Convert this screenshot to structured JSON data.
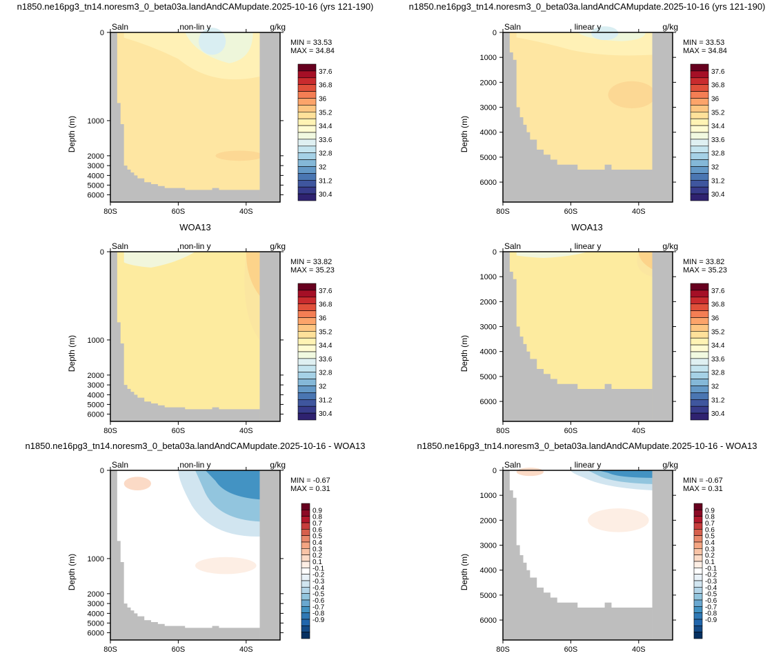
{
  "chart_data": [
    {
      "type": "heatmap",
      "panel": "model-nonlinear",
      "title": "n1850.ne16pg3_tn14.noresm3_0_beta03a.landAndCAMupdate.2025-10-16 (yrs 121-190)",
      "left_label": "Saln",
      "center_label": "non-lin y",
      "right_label": "g/kg",
      "ylabel": "Depth (m)",
      "x_ticks": [
        "80S",
        "60S",
        "40S"
      ],
      "y_ticks": [
        "0",
        "1000",
        "2000",
        "3000",
        "4000",
        "5000",
        "6000"
      ],
      "min_label": "MIN = ",
      "min_value": "33.53",
      "max_label": "MAX = ",
      "max_value": "34.84",
      "colorbar": "salinity",
      "y_scale": "nonlinear"
    },
    {
      "type": "heatmap",
      "panel": "model-linear",
      "title": "n1850.ne16pg3_tn14.noresm3_0_beta03a.landAndCAMupdate.2025-10-16 (yrs 121-190)",
      "left_label": "Saln",
      "center_label": "linear y",
      "right_label": "g/kg",
      "ylabel": "Depth (m)",
      "x_ticks": [
        "80S",
        "60S",
        "40S"
      ],
      "y_ticks": [
        "0",
        "1000",
        "2000",
        "3000",
        "4000",
        "5000",
        "6000"
      ],
      "min_label": "MIN = ",
      "min_value": "33.53",
      "max_label": "MAX = ",
      "max_value": "34.84",
      "colorbar": "salinity",
      "y_scale": "linear"
    },
    {
      "type": "heatmap",
      "panel": "obs-nonlinear",
      "title": "WOA13",
      "left_label": "Saln",
      "center_label": "non-lin y",
      "right_label": "g/kg",
      "ylabel": "Depth (m)",
      "x_ticks": [
        "80S",
        "60S",
        "40S"
      ],
      "y_ticks": [
        "0",
        "1000",
        "2000",
        "3000",
        "4000",
        "5000",
        "6000"
      ],
      "min_label": "MIN = ",
      "min_value": "33.82",
      "max_label": "MAX = ",
      "max_value": "35.23",
      "colorbar": "salinity",
      "y_scale": "nonlinear"
    },
    {
      "type": "heatmap",
      "panel": "obs-linear",
      "title": "WOA13",
      "left_label": "Saln",
      "center_label": "linear y",
      "right_label": "g/kg",
      "ylabel": "Depth (m)",
      "x_ticks": [
        "80S",
        "60S",
        "40S"
      ],
      "y_ticks": [
        "0",
        "1000",
        "2000",
        "3000",
        "4000",
        "5000",
        "6000"
      ],
      "min_label": "MIN = ",
      "min_value": "33.82",
      "max_label": "MAX = ",
      "max_value": "35.23",
      "colorbar": "salinity",
      "y_scale": "linear"
    },
    {
      "type": "heatmap",
      "panel": "diff-nonlinear",
      "title": "n1850.ne16pg3_tn14.noresm3_0_beta03a.landAndCAMupdate.2025-10-16 - WOA13",
      "left_label": "Saln",
      "center_label": "non-lin y",
      "right_label": "g/kg",
      "ylabel": "Depth (m)",
      "x_ticks": [
        "80S",
        "60S",
        "40S"
      ],
      "y_ticks": [
        "0",
        "1000",
        "2000",
        "3000",
        "4000",
        "5000",
        "6000"
      ],
      "min_label": "MIN = ",
      "min_value": "-0.67",
      "max_label": "MAX = ",
      "max_value": "0.31",
      "colorbar": "difference",
      "y_scale": "nonlinear"
    },
    {
      "type": "heatmap",
      "panel": "diff-linear",
      "title": "n1850.ne16pg3_tn14.noresm3_0_beta03a.landAndCAMupdate.2025-10-16 - WOA13",
      "left_label": "Saln",
      "center_label": "linear y",
      "right_label": "g/kg",
      "ylabel": "Depth (m)",
      "x_ticks": [
        "80S",
        "60S",
        "40S"
      ],
      "y_ticks": [
        "0",
        "1000",
        "2000",
        "3000",
        "4000",
        "5000",
        "6000"
      ],
      "min_label": "MIN = ",
      "min_value": "-0.67",
      "max_label": "MAX = ",
      "max_value": "0.31",
      "colorbar": "difference",
      "y_scale": "linear"
    }
  ],
  "colorbars": {
    "salinity": {
      "labels": [
        "37.6",
        "36.8",
        "36",
        "35.2",
        "34.4",
        "33.6",
        "32.8",
        "32",
        "31.2",
        "30.4"
      ],
      "colors": [
        "#67001f",
        "#a50f26",
        "#c92b2e",
        "#e0503a",
        "#f47e54",
        "#fca46a",
        "#fdc682",
        "#fee19a",
        "#fff3b4",
        "#fffbd2",
        "#f1f9e0",
        "#dff0f2",
        "#c4e4ef",
        "#a5d1e6",
        "#84b8d8",
        "#6499c7",
        "#4a76b2",
        "#3f569e",
        "#373b8a",
        "#2f2270"
      ]
    },
    "difference": {
      "labels": [
        "0.9",
        "0.8",
        "0.7",
        "0.6",
        "0.5",
        "0.4",
        "0.3",
        "0.2",
        "0.1",
        "-0.1",
        "-0.2",
        "-0.3",
        "-0.4",
        "-0.5",
        "-0.6",
        "-0.7",
        "-0.8",
        "-0.9"
      ],
      "colors": [
        "#67001f",
        "#8c0a24",
        "#b2182b",
        "#c73d3c",
        "#d6604d",
        "#e8896c",
        "#f4a582",
        "#f8c3a6",
        "#fbdac6",
        "#fdeee4",
        "#ffffff",
        "#e8f1f7",
        "#d1e5f0",
        "#b3d5e8",
        "#92c5de",
        "#6aa8d0",
        "#4393c3",
        "#2f79b5",
        "#2166ac",
        "#134a86",
        "#053061"
      ]
    }
  },
  "colors": {
    "land": "#bebebe",
    "model_field": "#fee6a2",
    "obs_field": "#fdeb9f",
    "difference_field": "#ffffff"
  }
}
